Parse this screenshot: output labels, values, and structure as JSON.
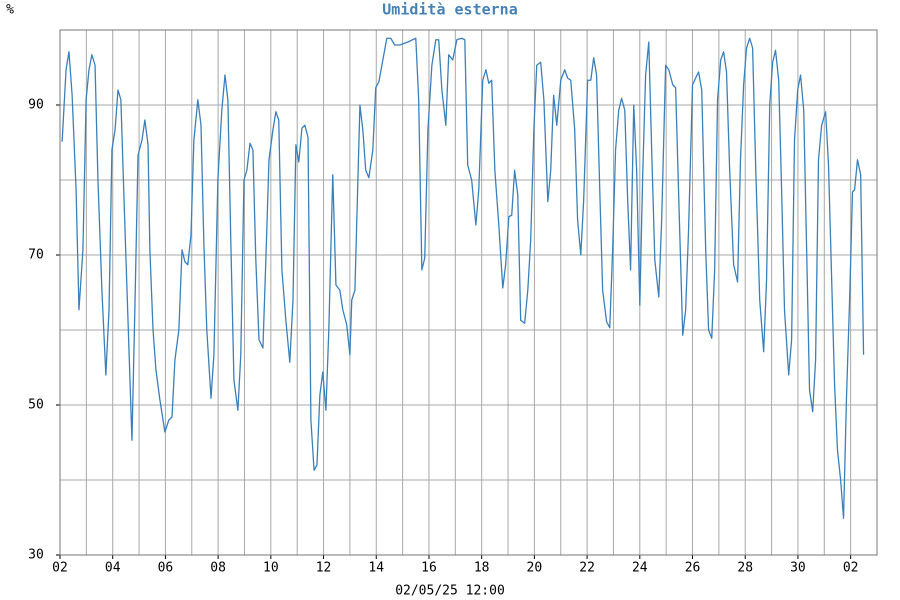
{
  "chart_data": {
    "type": "line",
    "title": "Umidità esterna",
    "y_unit": "%",
    "x_label": "02/05/25 12:00",
    "color": "#3a80b9",
    "grid": true,
    "xlim": [
      0,
      31
    ],
    "ylim": [
      30,
      100
    ],
    "xticks": [
      {
        "value": 0,
        "label": "02"
      },
      {
        "value": 2,
        "label": "04"
      },
      {
        "value": 4,
        "label": "06"
      },
      {
        "value": 6,
        "label": "08"
      },
      {
        "value": 8,
        "label": "10"
      },
      {
        "value": 10,
        "label": "12"
      },
      {
        "value": 12,
        "label": "14"
      },
      {
        "value": 14,
        "label": "16"
      },
      {
        "value": 16,
        "label": "18"
      },
      {
        "value": 18,
        "label": "20"
      },
      {
        "value": 20,
        "label": "22"
      },
      {
        "value": 22,
        "label": "24"
      },
      {
        "value": 24,
        "label": "26"
      },
      {
        "value": 26,
        "label": "28"
      },
      {
        "value": 28,
        "label": "30"
      },
      {
        "value": 30,
        "label": "02"
      }
    ],
    "yticks": [
      30,
      50,
      70,
      90
    ],
    "x": [
      0.08,
      0.23,
      0.34,
      0.46,
      0.61,
      0.72,
      0.87,
      0.99,
      1.1,
      1.21,
      1.33,
      1.44,
      1.59,
      1.74,
      1.86,
      1.97,
      2.09,
      2.2,
      2.31,
      2.43,
      2.58,
      2.73,
      2.84,
      2.96,
      3.11,
      3.22,
      3.34,
      3.41,
      3.53,
      3.64,
      3.79,
      3.98,
      4.13,
      4.25,
      4.36,
      4.51,
      4.63,
      4.74,
      4.85,
      4.97,
      5.08,
      5.23,
      5.35,
      5.46,
      5.57,
      5.73,
      5.84,
      5.99,
      6.14,
      6.26,
      6.37,
      6.48,
      6.6,
      6.75,
      6.86,
      6.98,
      7.09,
      7.21,
      7.32,
      7.43,
      7.55,
      7.7,
      7.81,
      7.93,
      8.08,
      8.19,
      8.3,
      8.42,
      8.57,
      8.72,
      8.84,
      8.95,
      9.06,
      9.18,
      9.29,
      9.41,
      9.52,
      9.64,
      9.75,
      9.86,
      9.97,
      10.09,
      10.2,
      10.35,
      10.47,
      10.62,
      10.73,
      10.88,
      11.0,
      11.07,
      11.19,
      11.38,
      11.49,
      11.6,
      11.72,
      11.87,
      11.98,
      12.1,
      12.25,
      12.4,
      12.55,
      12.7,
      12.89,
      13.2,
      13.5,
      13.61,
      13.73,
      13.84,
      13.96,
      14.11,
      14.26,
      14.37,
      14.49,
      14.64,
      14.75,
      14.9,
      15.06,
      15.24,
      15.36,
      15.47,
      15.62,
      15.78,
      15.89,
      16.04,
      16.16,
      16.27,
      16.38,
      16.5,
      16.65,
      16.8,
      16.91,
      17.03,
      17.14,
      17.25,
      17.37,
      17.48,
      17.63,
      17.75,
      17.86,
      17.98,
      18.09,
      18.24,
      18.36,
      18.51,
      18.62,
      18.73,
      18.85,
      19.0,
      19.15,
      19.26,
      19.38,
      19.53,
      19.64,
      19.76,
      19.87,
      20.02,
      20.14,
      20.25,
      20.36,
      20.48,
      20.59,
      20.74,
      20.86,
      20.97,
      21.08,
      21.2,
      21.31,
      21.43,
      21.54,
      21.65,
      21.77,
      21.88,
      22.0,
      22.11,
      22.22,
      22.34,
      22.45,
      22.57,
      22.72,
      22.83,
      22.98,
      23.1,
      23.25,
      23.36,
      23.48,
      23.63,
      23.74,
      23.85,
      24.0,
      24.12,
      24.23,
      24.35,
      24.5,
      24.61,
      24.73,
      24.84,
      24.95,
      25.07,
      25.18,
      25.29,
      25.41,
      25.56,
      25.71,
      25.82,
      25.94,
      26.05,
      26.17,
      26.28,
      26.4,
      26.55,
      26.7,
      26.81,
      26.93,
      27.04,
      27.15,
      27.27,
      27.38,
      27.49,
      27.65,
      27.76,
      27.87,
      27.99,
      28.1,
      28.22,
      28.33,
      28.44,
      28.56,
      28.67,
      28.78,
      28.9,
      29.05,
      29.16,
      29.28,
      29.39,
      29.5,
      29.62,
      29.73,
      29.84,
      29.96,
      30.07,
      30.15,
      30.26,
      30.38,
      30.49
    ],
    "values": [
      85.1,
      94.7,
      97.1,
      91.3,
      78.7,
      62.7,
      70.7,
      90.7,
      94.7,
      96.7,
      95.3,
      80,
      65.3,
      54,
      62.7,
      84,
      86.7,
      92,
      90.7,
      77.3,
      61.3,
      45.3,
      62.7,
      83.3,
      85.3,
      88,
      84.7,
      70.7,
      60,
      54.7,
      50.7,
      46.4,
      48,
      48.4,
      56,
      60,
      70.7,
      69.1,
      68.7,
      72.7,
      85.3,
      90.7,
      87.3,
      71.3,
      60,
      50.9,
      56.7,
      80,
      89.3,
      94,
      90.7,
      72,
      53.3,
      49.3,
      56.7,
      80,
      81.3,
      84.9,
      84,
      69.3,
      58.7,
      57.6,
      69.3,
      82.7,
      86.7,
      89.1,
      88,
      68,
      61.3,
      55.7,
      64,
      84.7,
      82.4,
      86.9,
      87.3,
      85.7,
      48,
      41.3,
      42,
      51.3,
      54.4,
      49.3,
      60,
      80.7,
      66,
      65.3,
      62.7,
      60.7,
      56.7,
      64,
      65.3,
      90,
      86.7,
      81.3,
      80.3,
      84,
      92.3,
      93.1,
      96,
      98.9,
      98.9,
      98,
      98,
      98.4,
      98.9,
      90.7,
      68,
      69.6,
      86.7,
      95.3,
      98.7,
      98.7,
      92,
      87.3,
      96.7,
      96,
      98.7,
      98.9,
      98.7,
      82,
      80,
      74,
      78.7,
      93.3,
      94.7,
      92.9,
      93.3,
      81.3,
      74,
      65.6,
      68.7,
      75.1,
      75.3,
      81.3,
      78,
      61.3,
      60.9,
      65.3,
      72,
      86.7,
      95.3,
      95.7,
      90.7,
      77.1,
      81.3,
      91.3,
      87.3,
      93.3,
      94.7,
      93.6,
      93.3,
      86.7,
      74.7,
      70,
      77.3,
      93.3,
      93.3,
      96.3,
      94,
      78.7,
      65.3,
      61.1,
      60.3,
      70.7,
      84,
      89.3,
      90.9,
      89.3,
      77.3,
      68,
      90,
      81.3,
      63.3,
      80.7,
      94,
      98.4,
      84,
      69.3,
      64.4,
      74.7,
      95.3,
      94.7,
      92.7,
      92.3,
      77.3,
      59.3,
      62.7,
      73.3,
      92.7,
      93.6,
      94.4,
      92,
      70.7,
      60,
      58.9,
      68,
      90.7,
      96,
      97.1,
      94.4,
      81.3,
      68.7,
      66.4,
      82.7,
      92.7,
      97.6,
      98.9,
      97.6,
      81.3,
      64,
      57.1,
      66.7,
      90,
      95.7,
      97.3,
      93.3,
      78.7,
      62.7,
      54,
      58.7,
      85.3,
      92,
      94,
      89.3,
      70.7,
      52,
      49.1,
      56,
      82.7,
      87.3,
      89.1,
      82,
      66.7,
      52.7,
      44,
      40,
      34.9,
      50.7,
      64,
      78.4,
      78.7,
      82.7,
      80.7,
      56.7
    ]
  }
}
